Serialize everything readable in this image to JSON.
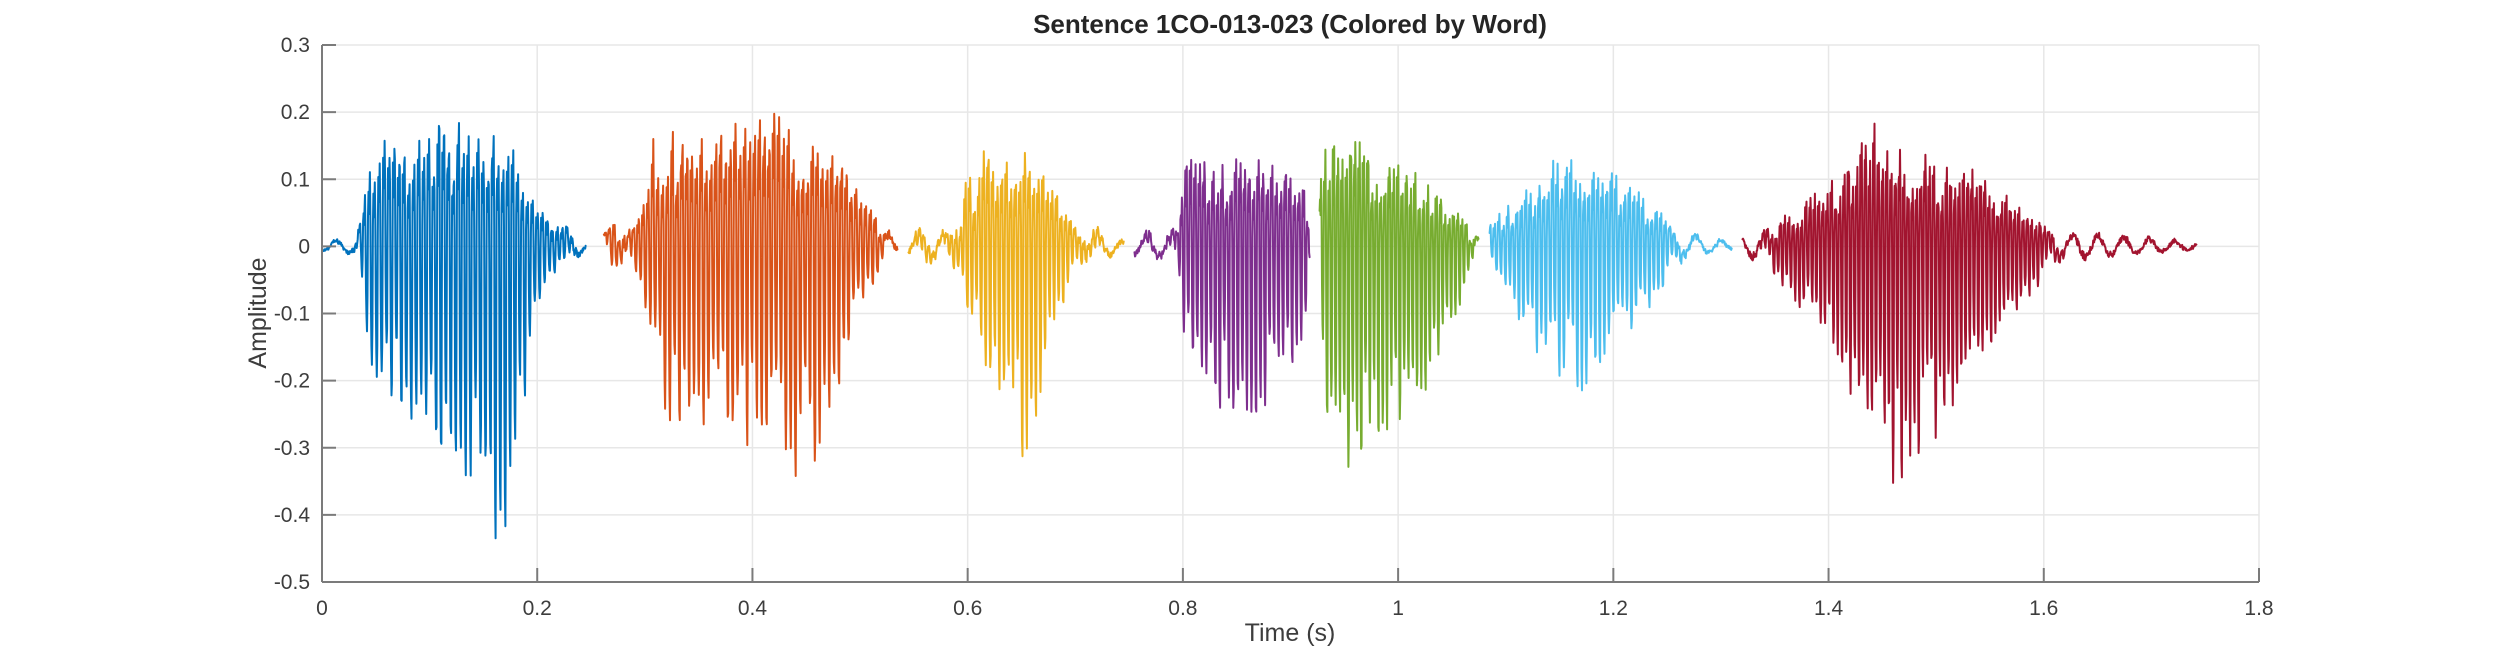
{
  "figure": {
    "title": "Sentence 1CO-013-023 (Colored by Word)",
    "xlabel": "Time (s)",
    "ylabel": "Amplitude",
    "background_color": "#ffffff",
    "axis_color": "#7b7b7b",
    "grid_color": "#e7e7e7",
    "tick_text_color": "#3d3d3d",
    "title_color": "#252525"
  },
  "chart_data": {
    "type": "line",
    "subtype": "audio-waveform-colored-by-word",
    "title": "Sentence 1CO-013-023 (Colored by Word)",
    "xlabel": "Time (s)",
    "ylabel": "Amplitude",
    "xlim": [
      0,
      1.8
    ],
    "ylim": [
      -0.5,
      0.3
    ],
    "grid": true,
    "legend": "none",
    "x_ticks": [
      {
        "value": 0,
        "label": "0"
      },
      {
        "value": 0.2,
        "label": "0.2"
      },
      {
        "value": 0.4,
        "label": "0.4"
      },
      {
        "value": 0.6,
        "label": "0.6"
      },
      {
        "value": 0.8,
        "label": "0.8"
      },
      {
        "value": 1,
        "label": "1"
      },
      {
        "value": 1.2,
        "label": "1.2"
      },
      {
        "value": 1.4,
        "label": "1.4"
      },
      {
        "value": 1.6,
        "label": "1.6"
      },
      {
        "value": 1.8,
        "label": "1.8"
      }
    ],
    "y_ticks": [
      {
        "value": 0.3,
        "label": "0.3"
      },
      {
        "value": 0.2,
        "label": "0.2"
      },
      {
        "value": 0.1,
        "label": "0.1"
      },
      {
        "value": 0,
        "label": "0"
      },
      {
        "value": -0.1,
        "label": "-0.1"
      },
      {
        "value": -0.2,
        "label": "-0.2"
      },
      {
        "value": -0.3,
        "label": "-0.3"
      },
      {
        "value": -0.4,
        "label": "-0.4"
      },
      {
        "value": -0.5,
        "label": "-0.5"
      }
    ],
    "word_count": 7,
    "segments": [
      {
        "name": "word-1",
        "color": "#0072BD",
        "t_start": 0.0,
        "t_end": 0.245,
        "envelope": [
          [
            0.0,
            0.01,
            -0.01
          ],
          [
            0.028,
            0.015,
            -0.015
          ],
          [
            0.036,
            0.05,
            -0.04
          ],
          [
            0.045,
            0.2,
            -0.18
          ],
          [
            0.06,
            0.23,
            -0.25
          ],
          [
            0.08,
            0.21,
            -0.29
          ],
          [
            0.1,
            0.26,
            -0.33
          ],
          [
            0.12,
            0.25,
            -0.31
          ],
          [
            0.135,
            0.26,
            -0.37
          ],
          [
            0.15,
            0.23,
            -0.44
          ],
          [
            0.163,
            0.22,
            -0.47
          ],
          [
            0.175,
            0.21,
            -0.4
          ],
          [
            0.188,
            0.15,
            -0.25
          ],
          [
            0.198,
            0.08,
            -0.1
          ],
          [
            0.21,
            0.06,
            -0.05
          ],
          [
            0.228,
            0.05,
            -0.04
          ],
          [
            0.245,
            0.012,
            -0.01
          ]
        ]
      },
      {
        "name": "word-2",
        "color": "#D95319",
        "t_start": 0.262,
        "t_end": 0.535,
        "envelope": [
          [
            0.262,
            0.03,
            -0.025
          ],
          [
            0.27,
            0.06,
            -0.05
          ],
          [
            0.285,
            0.04,
            -0.04
          ],
          [
            0.298,
            0.08,
            -0.07
          ],
          [
            0.308,
            0.2,
            -0.16
          ],
          [
            0.32,
            0.21,
            -0.28
          ],
          [
            0.34,
            0.23,
            -0.3
          ],
          [
            0.36,
            0.22,
            -0.27
          ],
          [
            0.38,
            0.25,
            -0.29
          ],
          [
            0.4,
            0.27,
            -0.31
          ],
          [
            0.42,
            0.26,
            -0.33
          ],
          [
            0.44,
            0.23,
            -0.35
          ],
          [
            0.46,
            0.19,
            -0.33
          ],
          [
            0.475,
            0.17,
            -0.25
          ],
          [
            0.49,
            0.16,
            -0.14
          ],
          [
            0.505,
            0.1,
            -0.08
          ],
          [
            0.52,
            0.05,
            -0.04
          ],
          [
            0.535,
            0.012,
            -0.01
          ]
        ]
      },
      {
        "name": "word-3",
        "color": "#EDB120",
        "t_start": 0.545,
        "t_end": 0.745,
        "envelope": [
          [
            0.545,
            0.025,
            -0.02
          ],
          [
            0.558,
            0.045,
            -0.04
          ],
          [
            0.575,
            0.03,
            -0.03
          ],
          [
            0.593,
            0.06,
            -0.05
          ],
          [
            0.6,
            0.15,
            -0.13
          ],
          [
            0.608,
            0.1,
            -0.09
          ],
          [
            0.616,
            0.23,
            -0.18
          ],
          [
            0.628,
            0.2,
            -0.26
          ],
          [
            0.642,
            0.19,
            -0.31
          ],
          [
            0.655,
            0.185,
            -0.33
          ],
          [
            0.665,
            0.17,
            -0.28
          ],
          [
            0.676,
            0.13,
            -0.18
          ],
          [
            0.688,
            0.09,
            -0.1
          ],
          [
            0.7,
            0.05,
            -0.04
          ],
          [
            0.715,
            0.045,
            -0.035
          ],
          [
            0.73,
            0.03,
            -0.025
          ],
          [
            0.745,
            0.01,
            -0.008
          ]
        ]
      },
      {
        "name": "word-4",
        "color": "#7E2F8E",
        "t_start": 0.755,
        "t_end": 0.918,
        "envelope": [
          [
            0.755,
            0.02,
            -0.018
          ],
          [
            0.768,
            0.035,
            -0.03
          ],
          [
            0.782,
            0.03,
            -0.028
          ],
          [
            0.795,
            0.045,
            -0.04
          ],
          [
            0.802,
            0.18,
            -0.16
          ],
          [
            0.812,
            0.175,
            -0.22
          ],
          [
            0.825,
            0.165,
            -0.24
          ],
          [
            0.84,
            0.17,
            -0.26
          ],
          [
            0.855,
            0.165,
            -0.25
          ],
          [
            0.87,
            0.17,
            -0.26
          ],
          [
            0.885,
            0.16,
            -0.25
          ],
          [
            0.9,
            0.155,
            -0.23
          ],
          [
            0.912,
            0.14,
            -0.19
          ],
          [
            0.918,
            0.03,
            -0.03
          ]
        ]
      },
      {
        "name": "word-5",
        "color": "#77AC30",
        "t_start": 0.927,
        "t_end": 1.075,
        "envelope": [
          [
            0.927,
            0.12,
            -0.2
          ],
          [
            0.935,
            0.21,
            -0.29
          ],
          [
            0.945,
            0.23,
            -0.33
          ],
          [
            0.958,
            0.205,
            -0.37
          ],
          [
            0.97,
            0.19,
            -0.35
          ],
          [
            0.985,
            0.175,
            -0.32
          ],
          [
            1.0,
            0.16,
            -0.3
          ],
          [
            1.015,
            0.14,
            -0.25
          ],
          [
            1.03,
            0.12,
            -0.2
          ],
          [
            1.045,
            0.095,
            -0.14
          ],
          [
            1.058,
            0.07,
            -0.09
          ],
          [
            1.068,
            0.045,
            -0.05
          ],
          [
            1.075,
            0.015,
            -0.015
          ]
        ]
      },
      {
        "name": "word-6",
        "color": "#4DBEEE",
        "t_start": 1.085,
        "t_end": 1.31,
        "envelope": [
          [
            1.085,
            0.045,
            -0.05
          ],
          [
            1.1,
            0.075,
            -0.09
          ],
          [
            1.118,
            0.11,
            -0.14
          ],
          [
            1.135,
            0.145,
            -0.18
          ],
          [
            1.152,
            0.17,
            -0.2
          ],
          [
            1.168,
            0.16,
            -0.22
          ],
          [
            1.185,
            0.15,
            -0.185
          ],
          [
            1.2,
            0.14,
            -0.16
          ],
          [
            1.218,
            0.115,
            -0.13
          ],
          [
            1.235,
            0.085,
            -0.095
          ],
          [
            1.252,
            0.055,
            -0.05
          ],
          [
            1.268,
            0.03,
            -0.025
          ],
          [
            1.285,
            0.02,
            -0.015
          ],
          [
            1.31,
            0.008,
            -0.006
          ]
        ]
      },
      {
        "name": "word-7",
        "color": "#A2142F",
        "t_start": 1.32,
        "t_end": 1.742,
        "envelope": [
          [
            1.32,
            0.02,
            -0.015
          ],
          [
            1.34,
            0.035,
            -0.04
          ],
          [
            1.36,
            0.06,
            -0.07
          ],
          [
            1.38,
            0.09,
            -0.11
          ],
          [
            1.4,
            0.13,
            -0.16
          ],
          [
            1.42,
            0.18,
            -0.23
          ],
          [
            1.438,
            0.24,
            -0.28
          ],
          [
            1.452,
            0.21,
            -0.36
          ],
          [
            1.468,
            0.2,
            -0.38
          ],
          [
            1.482,
            0.19,
            -0.33
          ],
          [
            1.5,
            0.175,
            -0.29
          ],
          [
            1.518,
            0.16,
            -0.24
          ],
          [
            1.535,
            0.145,
            -0.2
          ],
          [
            1.552,
            0.125,
            -0.165
          ],
          [
            1.57,
            0.095,
            -0.12
          ],
          [
            1.588,
            0.065,
            -0.08
          ],
          [
            1.605,
            0.04,
            -0.045
          ],
          [
            1.625,
            0.03,
            -0.03
          ],
          [
            1.65,
            0.025,
            -0.022
          ],
          [
            1.68,
            0.02,
            -0.018
          ],
          [
            1.71,
            0.015,
            -0.012
          ],
          [
            1.742,
            0.008,
            -0.006
          ]
        ]
      }
    ]
  }
}
